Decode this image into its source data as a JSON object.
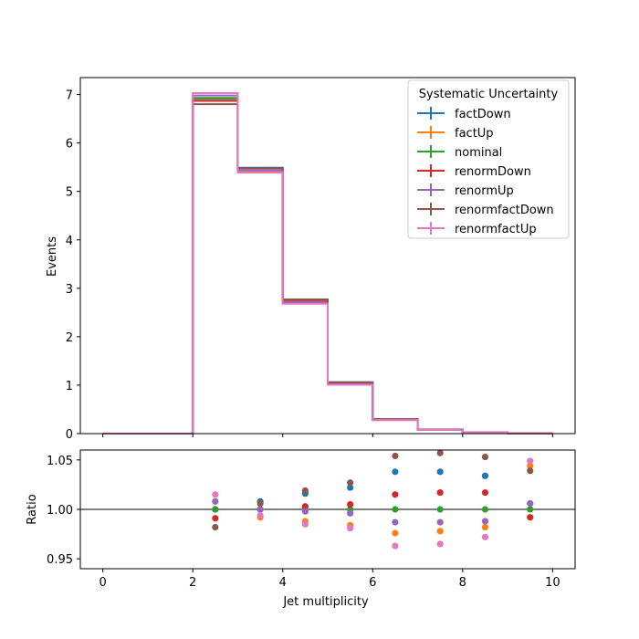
{
  "chart_data": {
    "type": "step",
    "xlabel": "Jet multiplicity",
    "top": {
      "ylabel": "Events",
      "xlim": [
        -0.5,
        10.5
      ],
      "ylim": [
        0,
        7.35
      ],
      "yticks": [
        0,
        1,
        2,
        3,
        4,
        5,
        6,
        7
      ],
      "bin_edges": [
        0,
        1,
        2,
        3,
        4,
        5,
        6,
        7,
        8,
        9,
        10
      ],
      "legend_title": "Systematic Uncertainty",
      "legend_position": "upper right",
      "series": [
        {
          "name": "factDown",
          "color": "#1f77b4",
          "values": [
            0,
            0,
            6.92,
            5.49,
            2.77,
            1.06,
            0.3,
            0.085,
            0.025,
            0.007
          ]
        },
        {
          "name": "factUp",
          "color": "#ff7f0e",
          "values": [
            0,
            0,
            6.88,
            5.39,
            2.69,
            1.01,
            0.28,
            0.08,
            0.024,
            0.007
          ]
        },
        {
          "name": "nominal",
          "color": "#2ca02c",
          "values": [
            0,
            0,
            6.93,
            5.44,
            2.72,
            1.03,
            0.29,
            0.082,
            0.024,
            0.007
          ]
        },
        {
          "name": "renormDown",
          "color": "#d62728",
          "values": [
            0,
            0,
            6.87,
            5.44,
            2.73,
            1.04,
            0.3,
            0.083,
            0.025,
            0.007
          ]
        },
        {
          "name": "renormUp",
          "color": "#9467bd",
          "values": [
            0,
            0,
            6.98,
            5.44,
            2.71,
            1.02,
            0.28,
            0.081,
            0.024,
            0.007
          ]
        },
        {
          "name": "renormfactDown",
          "color": "#8c564b",
          "values": [
            0,
            0,
            6.8,
            5.48,
            2.77,
            1.06,
            0.3,
            0.086,
            0.025,
            0.007
          ]
        },
        {
          "name": "renormfactUp",
          "color": "#e377c2",
          "values": [
            0,
            0,
            7.03,
            5.4,
            2.68,
            1.01,
            0.28,
            0.079,
            0.023,
            0.007
          ]
        }
      ]
    },
    "bottom": {
      "ylabel": "Ratio",
      "xlim": [
        -0.5,
        10.5
      ],
      "ylim": [
        0.94,
        1.06
      ],
      "yticks": [
        0.95,
        1.0,
        1.05
      ],
      "ytick_labels": [
        "0.95",
        "1.00",
        "1.05"
      ],
      "xticks": [
        0,
        2,
        4,
        6,
        8,
        10
      ],
      "reference_line": 1.0,
      "x": [
        2.5,
        3.5,
        4.5,
        5.5,
        6.5,
        7.5,
        8.5,
        9.5
      ],
      "series": [
        {
          "name": "factDown",
          "color": "#1f77b4",
          "values": [
            1.0,
            1.008,
            1.016,
            1.022,
            1.038,
            1.038,
            1.034,
            1.006
          ]
        },
        {
          "name": "factUp",
          "color": "#ff7f0e",
          "values": [
            1.0,
            0.992,
            0.988,
            0.984,
            0.976,
            0.978,
            0.982,
            1.044
          ]
        },
        {
          "name": "nominal",
          "color": "#2ca02c",
          "values": [
            1.0,
            1.0,
            1.0,
            1.0,
            1.0,
            1.0,
            1.0,
            1.0
          ]
        },
        {
          "name": "renormDown",
          "color": "#d62728",
          "values": [
            0.991,
            1.0,
            1.003,
            1.005,
            1.015,
            1.017,
            1.017,
            0.992
          ]
        },
        {
          "name": "renormUp",
          "color": "#9467bd",
          "values": [
            1.008,
            1.0,
            0.998,
            0.996,
            0.987,
            0.987,
            0.988,
            1.006
          ]
        },
        {
          "name": "renormfactDown",
          "color": "#8c564b",
          "values": [
            0.982,
            1.006,
            1.019,
            1.027,
            1.054,
            1.057,
            1.053,
            1.039
          ]
        },
        {
          "name": "renormfactUp",
          "color": "#e377c2",
          "values": [
            1.015,
            0.994,
            0.985,
            0.981,
            0.963,
            0.965,
            0.972,
            1.049
          ]
        }
      ]
    }
  }
}
